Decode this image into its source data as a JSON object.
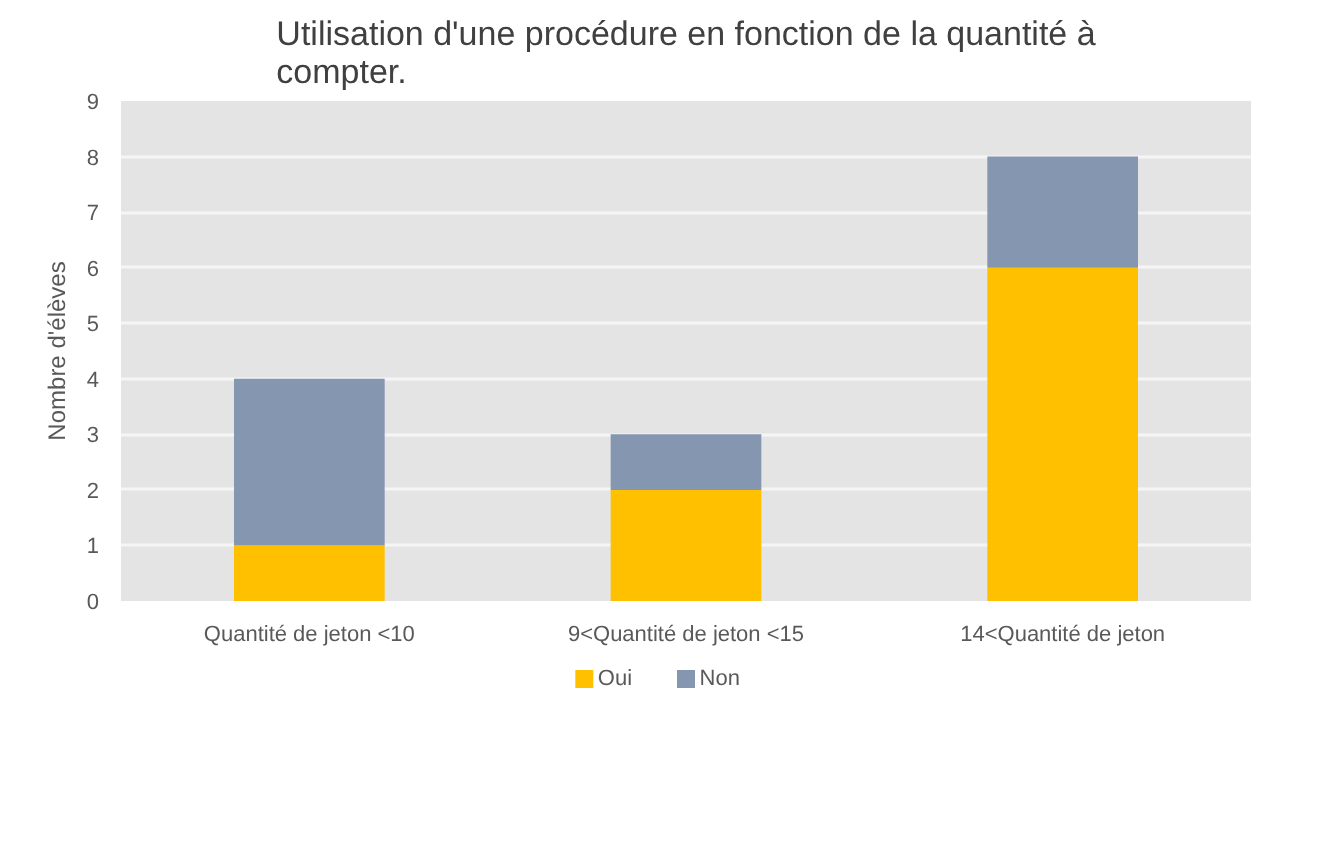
{
  "chart_data": {
    "type": "bar",
    "title": "Utilisation d'une procédure en fonction de la quantité à compter.",
    "ylabel": "Nombre d'élèves",
    "categories": [
      "Quantité de jeton <10",
      "9<Quantité de jeton <15",
      "14<Quantité de jeton"
    ],
    "stacked": true,
    "series": [
      {
        "name": "Oui",
        "color": "#ffc000",
        "values": [
          1,
          2,
          6
        ]
      },
      {
        "name": "Non",
        "color": "#8496b0",
        "values": [
          3,
          1,
          2
        ]
      }
    ],
    "ylim": [
      0,
      9
    ],
    "yticks": [
      0,
      1,
      2,
      3,
      4,
      5,
      6,
      7,
      8,
      9
    ],
    "grid": "y",
    "legend": "bottom"
  }
}
